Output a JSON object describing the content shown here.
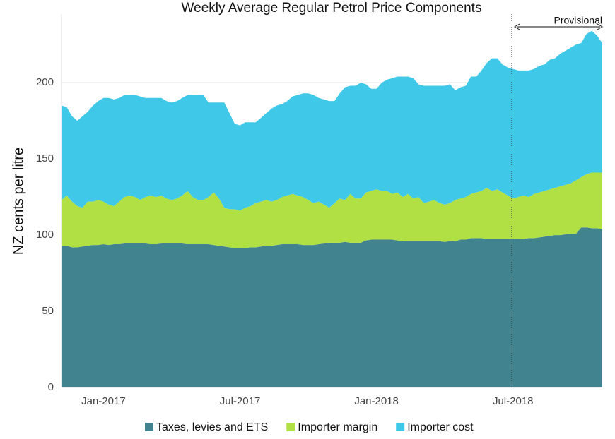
{
  "chart_data": {
    "type": "stacked_area",
    "title": "Weekly Average Regular Petrol Price Components",
    "y_label": "NZ cents per litre",
    "annotation": "Provisional",
    "categories": [
      null,
      null,
      null,
      null,
      null,
      null,
      null,
      null,
      "Jan-2017",
      null,
      null,
      null,
      null,
      null,
      null,
      null,
      null,
      null,
      null,
      null,
      null,
      null,
      null,
      null,
      null,
      null,
      null,
      null,
      null,
      null,
      null,
      null,
      null,
      null,
      "Jul-2017",
      null,
      null,
      null,
      null,
      null,
      null,
      null,
      null,
      null,
      null,
      null,
      null,
      null,
      null,
      null,
      null,
      null,
      null,
      null,
      null,
      null,
      null,
      null,
      null,
      null,
      "Jan-2018",
      null,
      null,
      null,
      null,
      null,
      null,
      null,
      null,
      null,
      null,
      null,
      null,
      null,
      null,
      null,
      null,
      null,
      null,
      null,
      null,
      null,
      null,
      null,
      null,
      null,
      "Jul-2018",
      null,
      null,
      null,
      null,
      null,
      null,
      null,
      null,
      null,
      null,
      null,
      null,
      null,
      null,
      null,
      null,
      null
    ],
    "series": [
      {
        "name": "Taxes, levies and ETS",
        "color": "#41848f",
        "values": [
          93,
          93,
          92,
          92,
          92.5,
          93,
          93.5,
          93.5,
          94,
          93.5,
          94,
          94,
          94.5,
          94.5,
          94.5,
          94.5,
          94.5,
          94,
          94,
          94.5,
          94.5,
          94.5,
          94.5,
          94.5,
          94,
          94,
          94,
          94,
          94,
          93.5,
          93,
          92.5,
          92,
          91.5,
          91.5,
          91.5,
          92,
          92,
          92.5,
          93,
          93,
          93.5,
          94,
          94,
          94,
          94,
          93.5,
          93.5,
          93.5,
          94,
          94.5,
          95,
          95,
          95,
          95.5,
          95,
          95,
          95,
          96.5,
          97,
          97,
          97,
          97,
          97,
          96.5,
          96,
          96,
          96,
          96,
          96,
          96,
          96,
          96,
          95.5,
          96,
          96,
          97,
          97,
          98,
          98,
          98,
          97.5,
          97.5,
          97.5,
          97.5,
          97.5,
          97.5,
          97.5,
          97.5,
          98,
          98,
          98.5,
          99,
          99.5,
          100,
          100,
          100.5,
          101,
          101,
          105,
          105,
          104.5,
          104.5,
          104
        ]
      },
      {
        "name": "Importer margin",
        "color": "#b0e043",
        "values": [
          30,
          33,
          30,
          27,
          25.5,
          29,
          28.5,
          29.5,
          28,
          26.5,
          25,
          28,
          30.5,
          31.5,
          30.5,
          28.5,
          30.5,
          32,
          31,
          31.5,
          29.5,
          28.5,
          29.5,
          31.5,
          35,
          31,
          29,
          29,
          31,
          34.5,
          31,
          25.5,
          25,
          25.5,
          24.5,
          26.5,
          27,
          29,
          29.5,
          30,
          29,
          29.5,
          31,
          32,
          33,
          32,
          31.5,
          29.5,
          27.5,
          28,
          25.5,
          23,
          26,
          29,
          27.5,
          32,
          29,
          29,
          31.5,
          32,
          33,
          32,
          32,
          30,
          31.5,
          29,
          31,
          28,
          29,
          25,
          26,
          27,
          25,
          24.5,
          25,
          27,
          27,
          28,
          29,
          30,
          31,
          33.5,
          31.5,
          32.5,
          30.5,
          28.5,
          26.5,
          27.5,
          28.5,
          27,
          29,
          29.5,
          30,
          30.5,
          31,
          32,
          32.5,
          33,
          35,
          33,
          35,
          36.5,
          36.5,
          37
        ]
      },
      {
        "name": "Importer cost",
        "color": "#40c8e8",
        "values": [
          62,
          58,
          56,
          56,
          60,
          59,
          63,
          65,
          68,
          70,
          70,
          68,
          67,
          66,
          67,
          68,
          65,
          64,
          65,
          64,
          64,
          64,
          64,
          64,
          63,
          67,
          69,
          69,
          62,
          59,
          63,
          69,
          63,
          56,
          56,
          56,
          55,
          53,
          55,
          57,
          61,
          62,
          61,
          62,
          64,
          66,
          68,
          70,
          71,
          68,
          69,
          70,
          67,
          69,
          74,
          71,
          74,
          76,
          71,
          67,
          66,
          71,
          73,
          76,
          76,
          79,
          77,
          79,
          74,
          77,
          76,
          75,
          77,
          78,
          78,
          72,
          73,
          73,
          77,
          76,
          79,
          82,
          87,
          86,
          84,
          84,
          85,
          83,
          82,
          83,
          82,
          83,
          83,
          85,
          85,
          87,
          88,
          89,
          89,
          88,
          92,
          93,
          90,
          85
        ]
      }
    ],
    "ylim": [
      0,
      245
    ],
    "yticks": [
      0,
      50,
      100,
      150,
      200
    ],
    "grid": true
  }
}
